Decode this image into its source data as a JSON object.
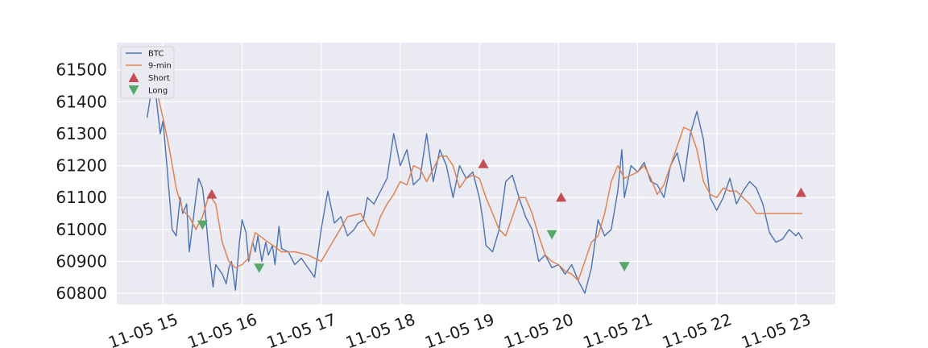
{
  "chart_data": {
    "type": "line",
    "title": "",
    "xlabel": "",
    "ylabel": "",
    "x_range": [
      "11-05 14:25",
      "11-05 23:30"
    ],
    "ylim": [
      60765,
      61585
    ],
    "grid": true,
    "legend_placement": "top-left",
    "x_tick_labels": [
      "11-05 15",
      "11-05 16",
      "11-05 17",
      "11-05 18",
      "11-05 19",
      "11-05 20",
      "11-05 21",
      "11-05 22",
      "11-05 23"
    ],
    "y_tick_labels": [
      "60800",
      "60900",
      "61000",
      "61100",
      "61200",
      "61300",
      "61400",
      "61500"
    ],
    "colors": {
      "btc": "#4c72b0",
      "ma": "#dd8452",
      "short": "#c44e52",
      "long": "#55a868",
      "plot_bg": "#eaeaf2",
      "grid": "#ffffff"
    },
    "series": [
      {
        "name": "BTC",
        "x": [
          "14:48",
          "14:53",
          "14:58",
          "15:00",
          "15:03",
          "15:07",
          "15:10",
          "15:13",
          "15:15",
          "15:18",
          "15:20",
          "15:22",
          "15:25",
          "15:27",
          "15:30",
          "15:32",
          "15:35",
          "15:38",
          "15:40",
          "15:45",
          "15:48",
          "15:50",
          "15:52",
          "15:55",
          "15:58",
          "16:00",
          "16:03",
          "16:05",
          "16:08",
          "16:10",
          "16:12",
          "16:15",
          "16:18",
          "16:20",
          "16:23",
          "16:25",
          "16:28",
          "16:30",
          "16:35",
          "16:40",
          "16:45",
          "16:50",
          "16:55",
          "17:00",
          "17:05",
          "17:10",
          "17:15",
          "17:20",
          "17:25",
          "17:28",
          "17:32",
          "17:35",
          "17:40",
          "17:45",
          "17:50",
          "17:55",
          "18:00",
          "18:05",
          "18:10",
          "18:15",
          "18:20",
          "18:25",
          "18:30",
          "18:35",
          "18:40",
          "18:45",
          "18:50",
          "18:55",
          "19:00",
          "19:03",
          "19:05",
          "19:10",
          "19:15",
          "19:20",
          "19:25",
          "19:30",
          "19:35",
          "19:40",
          "19:45",
          "19:50",
          "19:55",
          "20:00",
          "20:05",
          "20:10",
          "20:15",
          "20:20",
          "20:25",
          "20:30",
          "20:35",
          "20:40",
          "20:45",
          "20:48",
          "20:50",
          "20:55",
          "21:00",
          "21:05",
          "21:10",
          "21:15",
          "21:20",
          "21:25",
          "21:30",
          "21:35",
          "21:40",
          "21:45",
          "21:50",
          "21:55",
          "22:00",
          "22:05",
          "22:10",
          "22:15",
          "22:20",
          "22:25",
          "22:30",
          "22:35",
          "22:40",
          "22:45",
          "22:50",
          "22:55",
          "23:00",
          "23:02",
          "23:05"
        ],
        "values": [
          61350,
          61480,
          61300,
          61340,
          61200,
          61000,
          60980,
          61100,
          61050,
          61080,
          60930,
          61000,
          61100,
          61160,
          61130,
          61060,
          60920,
          60820,
          60890,
          60860,
          60830,
          60880,
          60900,
          60810,
          60960,
          61030,
          60990,
          60900,
          60960,
          60930,
          60980,
          60900,
          60960,
          60920,
          60950,
          60890,
          61010,
          60940,
          60930,
          60890,
          60910,
          60880,
          60850,
          61000,
          61120,
          61020,
          61040,
          60980,
          61000,
          61020,
          61030,
          61100,
          61080,
          61120,
          61160,
          61300,
          61200,
          61250,
          61140,
          61160,
          61300,
          61150,
          61250,
          61200,
          61100,
          61200,
          61160,
          61180,
          61100,
          61020,
          60950,
          60930,
          61000,
          61150,
          61170,
          61100,
          61040,
          61000,
          60900,
          60920,
          60880,
          60890,
          60860,
          60890,
          60840,
          60800,
          60880,
          61030,
          60980,
          61000,
          61120,
          61250,
          61100,
          61200,
          61180,
          61210,
          61150,
          61140,
          61100,
          61200,
          61240,
          61150,
          61300,
          61370,
          61280,
          61100,
          61060,
          61100,
          61160,
          61080,
          61120,
          61150,
          61130,
          61080,
          60990,
          60960,
          60970,
          61000,
          60980,
          60990,
          60970
        ],
        "color": "#4c72b0"
      },
      {
        "name": "9-min",
        "x": [
          "14:55",
          "15:00",
          "15:05",
          "15:10",
          "15:15",
          "15:20",
          "15:25",
          "15:30",
          "15:35",
          "15:40",
          "15:45",
          "15:50",
          "15:55",
          "16:00",
          "16:05",
          "16:10",
          "16:20",
          "16:30",
          "16:40",
          "16:50",
          "17:00",
          "17:10",
          "17:20",
          "17:30",
          "17:35",
          "17:40",
          "17:45",
          "17:50",
          "17:55",
          "18:00",
          "18:05",
          "18:10",
          "18:15",
          "18:20",
          "18:25",
          "18:30",
          "18:35",
          "18:40",
          "18:45",
          "18:50",
          "18:55",
          "19:00",
          "19:05",
          "19:10",
          "19:15",
          "19:20",
          "19:25",
          "19:30",
          "19:35",
          "19:40",
          "19:45",
          "19:50",
          "19:55",
          "20:00",
          "20:05",
          "20:10",
          "20:15",
          "20:20",
          "20:25",
          "20:30",
          "20:35",
          "20:40",
          "20:45",
          "20:50",
          "20:55",
          "21:00",
          "21:05",
          "21:10",
          "21:15",
          "21:20",
          "21:25",
          "21:30",
          "21:35",
          "21:40",
          "21:45",
          "21:50",
          "21:55",
          "22:00",
          "22:05",
          "22:10",
          "22:15",
          "22:20",
          "22:25",
          "22:30",
          "22:35",
          "22:40",
          "22:45",
          "22:50",
          "22:55",
          "23:00",
          "23:05"
        ],
        "values": [
          61440,
          61350,
          61250,
          61130,
          61060,
          61040,
          61000,
          61040,
          61110,
          61080,
          60960,
          60900,
          60880,
          60890,
          60910,
          60990,
          60960,
          60930,
          60930,
          60920,
          60900,
          60970,
          61040,
          61050,
          61010,
          60980,
          61040,
          61080,
          61110,
          61150,
          61140,
          61200,
          61190,
          61150,
          61190,
          61230,
          61230,
          61200,
          61130,
          61160,
          61170,
          61160,
          61100,
          61050,
          61000,
          60980,
          61040,
          61100,
          61100,
          61050,
          60980,
          60920,
          60900,
          60890,
          60870,
          60860,
          60840,
          60900,
          60960,
          60980,
          61050,
          61150,
          61200,
          61160,
          61170,
          61180,
          61200,
          61160,
          61110,
          61140,
          61200,
          61260,
          61320,
          61310,
          61250,
          61150,
          61110,
          61100,
          61130,
          61120,
          61120,
          61100,
          61080,
          61050,
          61050,
          61050,
          61050,
          61050,
          61050,
          61050,
          61050
        ],
        "color": "#dd8452"
      }
    ],
    "markers": [
      {
        "name": "Short",
        "symbol": "triangle-up",
        "color": "#c44e52",
        "points": [
          {
            "x": "15:37",
            "y": 61110
          },
          {
            "x": "19:03",
            "y": 61205
          },
          {
            "x": "20:02",
            "y": 61100
          },
          {
            "x": "23:04",
            "y": 61115
          }
        ]
      },
      {
        "name": "Long",
        "symbol": "triangle-down",
        "color": "#55a868",
        "points": [
          {
            "x": "15:30",
            "y": 61015
          },
          {
            "x": "16:13",
            "y": 60880
          },
          {
            "x": "19:55",
            "y": 60985
          },
          {
            "x": "20:50",
            "y": 60885
          }
        ]
      }
    ],
    "legend": [
      "BTC",
      "9-min",
      "Short",
      "Long"
    ]
  }
}
